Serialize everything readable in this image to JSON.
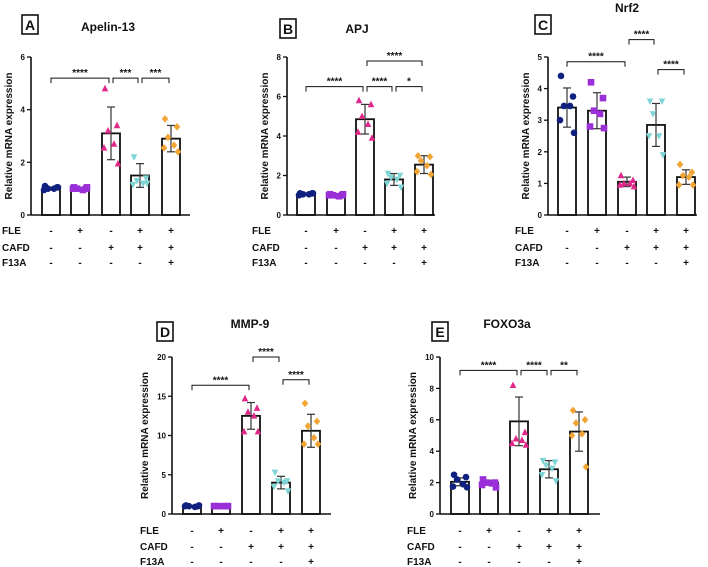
{
  "chart_data": [
    {
      "type": "bar",
      "panel_label": "A",
      "title": "Apelin-13",
      "ylabel": "Relative mRNA expression",
      "ylim": [
        0,
        6
      ],
      "yticks": [
        0,
        2,
        4,
        6
      ],
      "means": [
        1.0,
        1.0,
        3.1,
        1.5,
        2.9
      ],
      "sd": [
        0.05,
        0.05,
        1.0,
        0.45,
        0.5
      ],
      "points": [
        [
          1.1,
          1.05,
          1.0,
          1.0,
          0.95,
          1.05
        ],
        [
          1.05,
          1.0,
          1.0,
          0.95,
          1.0,
          1.05
        ],
        [
          4.8,
          3.4,
          3.2,
          2.7,
          2.55,
          1.95
        ],
        [
          2.2,
          1.4,
          1.3,
          1.2,
          1.15,
          1.2
        ],
        [
          3.65,
          3.35,
          2.95,
          2.65,
          2.55,
          2.4
        ]
      ],
      "significance": [
        {
          "from": 1,
          "to": 3,
          "y": 5.2,
          "label": "****"
        },
        {
          "from": 3,
          "to": 4,
          "y": 5.2,
          "label": "***"
        },
        {
          "from": 4,
          "to": 5,
          "y": 5.2,
          "label": "***"
        }
      ]
    },
    {
      "type": "bar",
      "panel_label": "B",
      "title": "APJ",
      "ylabel": "Relative mRNA expression",
      "ylim": [
        0,
        8
      ],
      "yticks": [
        0,
        2,
        4,
        6,
        8
      ],
      "means": [
        1.05,
        1.0,
        4.85,
        1.8,
        2.55
      ],
      "sd": [
        0.05,
        0.05,
        0.75,
        0.3,
        0.45
      ],
      "points": [
        [
          1.1,
          1.1,
          1.05,
          1.05,
          1.0,
          1.1
        ],
        [
          1.05,
          1.0,
          1.0,
          0.95,
          1.0,
          1.05
        ],
        [
          5.8,
          5.6,
          5.0,
          4.6,
          4.2,
          3.9
        ],
        [
          2.1,
          2.0,
          1.9,
          1.8,
          1.6,
          1.4
        ],
        [
          3.0,
          2.95,
          2.75,
          2.5,
          2.2,
          2.05
        ]
      ],
      "significance": [
        {
          "from": 1,
          "to": 3,
          "y": 6.5,
          "label": "****"
        },
        {
          "from": 3,
          "to": 4,
          "y": 6.5,
          "label": "****"
        },
        {
          "from": 4,
          "to": 5,
          "y": 6.5,
          "label": "*"
        },
        {
          "from": 3,
          "to": 5,
          "y": 7.8,
          "label": "****"
        }
      ]
    },
    {
      "type": "bar",
      "panel_label": "C",
      "title": "Nrf2",
      "ylabel": "Relative mRNA expression",
      "ylim": [
        0,
        5
      ],
      "yticks": [
        0,
        1,
        2,
        3,
        4,
        5
      ],
      "means": [
        3.4,
        3.3,
        1.05,
        2.85,
        1.2
      ],
      "sd": [
        0.62,
        0.57,
        0.15,
        0.68,
        0.23
      ],
      "points": [
        [
          4.4,
          3.75,
          3.45,
          3.45,
          3.0,
          2.6
        ],
        [
          4.2,
          3.7,
          3.3,
          3.2,
          2.8,
          2.75
        ],
        [
          1.25,
          1.1,
          1.0,
          1.0,
          0.95,
          0.9
        ],
        [
          3.6,
          3.6,
          3.2,
          2.5,
          2.5,
          1.9
        ],
        [
          1.6,
          1.35,
          1.25,
          1.2,
          0.95,
          0.95
        ]
      ],
      "significance": [
        {
          "from": 1,
          "to": 3,
          "y": 4.85,
          "label": "****"
        },
        {
          "from": 3,
          "to": 4,
          "y": 5.55,
          "label": "****"
        },
        {
          "from": 4,
          "to": 5,
          "y": 4.6,
          "label": "****"
        }
      ]
    },
    {
      "type": "bar",
      "panel_label": "D",
      "title": "MMP-9",
      "ylabel": "Relative mRNA expression",
      "ylim": [
        0,
        20
      ],
      "yticks": [
        0,
        5,
        10,
        15,
        20
      ],
      "means": [
        1.0,
        1.0,
        12.5,
        4.0,
        10.6
      ],
      "sd": [
        0.1,
        0.1,
        1.7,
        0.8,
        2.1
      ],
      "points": [
        [
          1.1,
          1.0,
          1.0,
          0.9,
          1.0,
          1.1
        ],
        [
          1.0,
          1.0,
          1.0,
          1.0,
          1.0,
          1.0
        ],
        [
          14.7,
          13.5,
          13.0,
          12.5,
          10.5,
          10.5
        ],
        [
          5.3,
          4.2,
          4.2,
          4.0,
          3.5,
          2.9
        ],
        [
          14.1,
          11.8,
          11.2,
          9.7,
          8.9,
          8.9
        ]
      ],
      "significance": [
        {
          "from": 1,
          "to": 3,
          "y": 16.4,
          "label": "****"
        },
        {
          "from": 3,
          "to": 4,
          "y": 20.0,
          "label": "****"
        },
        {
          "from": 4,
          "to": 5,
          "y": 17.1,
          "label": "****"
        }
      ]
    },
    {
      "type": "bar",
      "panel_label": "E",
      "title": "FOXO3a",
      "ylabel": "Relative mRNA expression",
      "ylim": [
        0,
        10
      ],
      "yticks": [
        0,
        2,
        4,
        6,
        8,
        10
      ],
      "means": [
        2.05,
        2.0,
        5.9,
        2.85,
        5.25
      ],
      "sd": [
        0.25,
        0.15,
        1.55,
        0.55,
        1.25
      ],
      "points": [
        [
          2.5,
          2.35,
          2.2,
          1.9,
          1.75,
          1.7
        ],
        [
          2.2,
          2.0,
          2.0,
          1.95,
          1.85,
          1.7
        ],
        [
          8.2,
          5.2,
          4.8,
          4.7,
          4.5,
          4.4
        ],
        [
          3.4,
          3.3,
          3.1,
          2.9,
          2.5,
          2.1
        ],
        [
          6.6,
          6.0,
          5.8,
          5.1,
          5.0,
          3.0
        ]
      ],
      "significance": [
        {
          "from": 1,
          "to": 3,
          "y": 9.15,
          "label": "****"
        },
        {
          "from": 3,
          "to": 4,
          "y": 9.15,
          "label": "****"
        },
        {
          "from": 4,
          "to": 5,
          "y": 9.15,
          "label": "**"
        }
      ]
    }
  ],
  "groups": {
    "markers": [
      "circle",
      "square",
      "triangle-up",
      "triangle-down",
      "diamond"
    ],
    "colors": [
      "#10207f",
      "#9a2fd8",
      "#e0288a",
      "#7fd5d5",
      "#f0a535"
    ]
  },
  "treatment_rows": [
    {
      "label": "FLE",
      "signs": [
        "-",
        "+",
        "-",
        "+",
        "+"
      ]
    },
    {
      "label": "CAFD",
      "signs": [
        "-",
        "-",
        "+",
        "+",
        "+"
      ]
    },
    {
      "label": "F13A",
      "signs": [
        "-",
        "-",
        "-",
        "-",
        "+"
      ]
    }
  ]
}
